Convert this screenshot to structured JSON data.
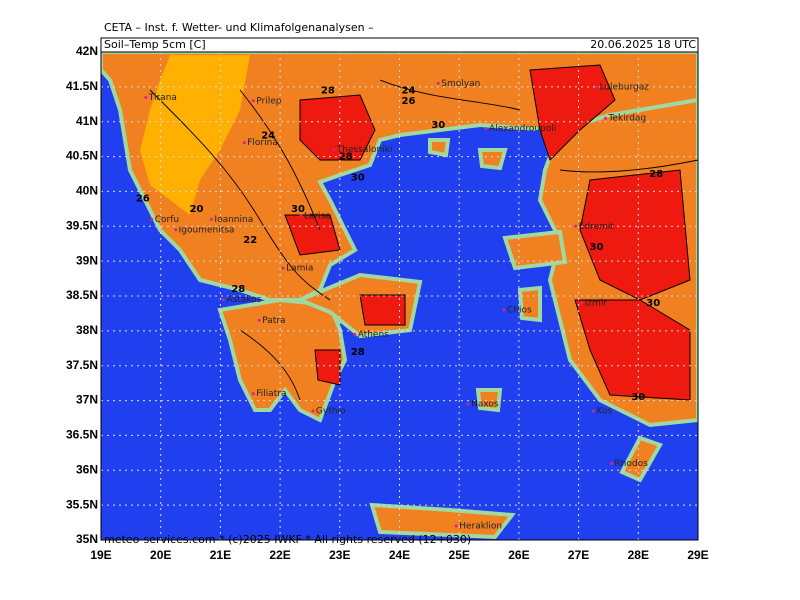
{
  "header": "CETA – Inst. f. Wetter- und Klimafolgenanalysen –",
  "panel": {
    "title": "Soil–Temp 5cm [C]",
    "datetime": "20.06.2025 18 UTC"
  },
  "axes": {
    "lat_ticks": [
      {
        "value": 42,
        "label": "42N"
      },
      {
        "value": 41.5,
        "label": "41.5N"
      },
      {
        "value": 41,
        "label": "41N"
      },
      {
        "value": 40.5,
        "label": "40.5N"
      },
      {
        "value": 40,
        "label": "40N"
      },
      {
        "value": 39.5,
        "label": "39.5N"
      },
      {
        "value": 39,
        "label": "39N"
      },
      {
        "value": 38.5,
        "label": "38.5N"
      },
      {
        "value": 38,
        "label": "38N"
      },
      {
        "value": 37.5,
        "label": "37.5N"
      },
      {
        "value": 37,
        "label": "37N"
      },
      {
        "value": 36.5,
        "label": "36.5N"
      },
      {
        "value": 36,
        "label": "36N"
      },
      {
        "value": 35.5,
        "label": "35.5N"
      },
      {
        "value": 35,
        "label": "35N"
      }
    ],
    "lon_ticks": [
      {
        "value": 19,
        "label": "19E"
      },
      {
        "value": 20,
        "label": "20E"
      },
      {
        "value": 21,
        "label": "21E"
      },
      {
        "value": 22,
        "label": "22E"
      },
      {
        "value": 23,
        "label": "23E"
      },
      {
        "value": 24,
        "label": "24E"
      },
      {
        "value": 25,
        "label": "25E"
      },
      {
        "value": 26,
        "label": "26E"
      },
      {
        "value": 27,
        "label": "27E"
      },
      {
        "value": 28,
        "label": "28E"
      },
      {
        "value": 29,
        "label": "29E"
      }
    ]
  },
  "places": [
    "Tirana",
    "Prilep",
    "Smolyan",
    "Luleburgaz",
    "Florina",
    "Thessaloniki",
    "Alexandroupoli",
    "Tekirdag",
    "Corfu",
    "Igoumenitsa",
    "Ioannina",
    "Larisa",
    "Lamia",
    "Edremit",
    "Astakos",
    "Patra",
    "Athens",
    "Izmir",
    "Chios",
    "Filiatra",
    "Gythio",
    "Naxos",
    "Kos",
    "Rhodos",
    "Heraklion"
  ],
  "contour_labels": [
    28,
    24,
    26,
    24,
    30,
    28,
    30,
    26,
    20,
    22,
    30,
    28,
    30,
    28,
    30,
    30,
    28
  ],
  "footer": "meteo-services.com * (c)2025 IWKF * All rights reserved (12+030)"
}
